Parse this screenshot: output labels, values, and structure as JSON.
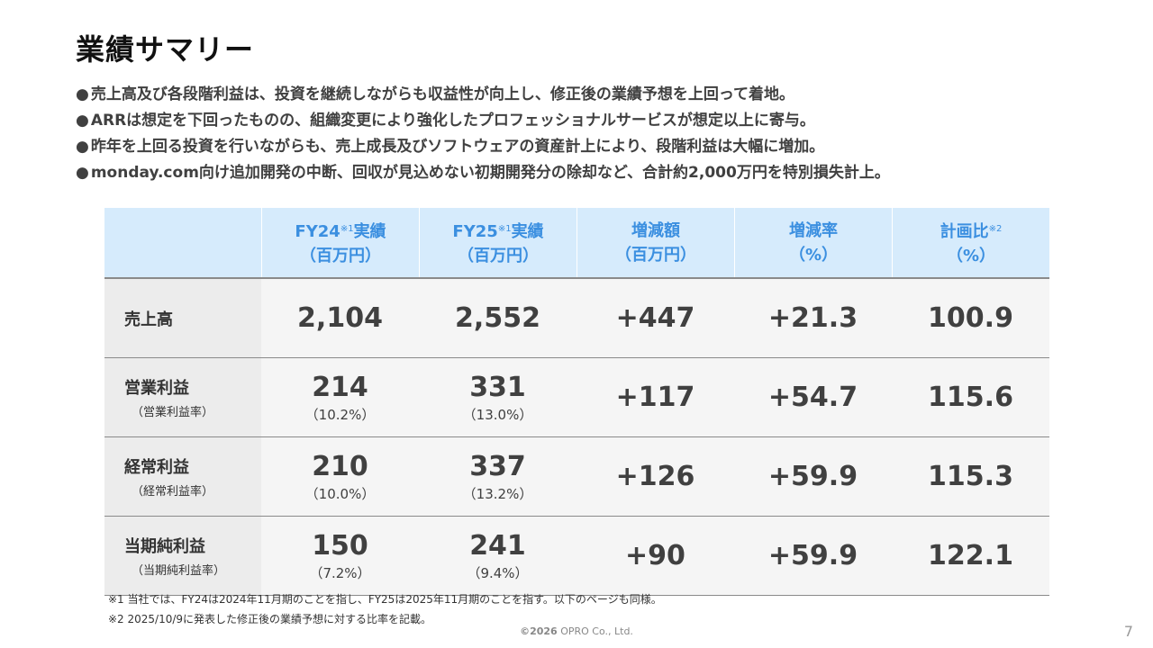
{
  "title": "業績サマリー",
  "bullets": [
    "売上高及び各段階利益は、投資を継続しながらも収益性が向上し、修正後の業績予想を上回って着地。",
    "ARRは想定を下回ったものの、組織変更により強化したプロフェッショナルサービスが想定以上に寄与。",
    "昨年を上回る投資を行いながらも、売上成長及びソフトウェアの資産計上により、段階利益は大幅に増加。",
    "monday.com向け追加開発の中断、回収が見込めない初期開発分の除却など、合計約2,000万円を特別損失計上。"
  ],
  "bullet_marker": "●",
  "table": {
    "headers": [
      {
        "line1": "FY24",
        "sup": "※1",
        "line1b": "実績",
        "line2": "（百万円）"
      },
      {
        "line1": "FY25",
        "sup": "※1",
        "line1b": "実績",
        "line2": "（百万円）"
      },
      {
        "line1": "増減額",
        "sup": "",
        "line1b": "",
        "line2": "（百万円）"
      },
      {
        "line1": "増減率",
        "sup": "",
        "line1b": "",
        "line2": "（%）"
      },
      {
        "line1": "計画比",
        "sup": "※2",
        "line1b": "",
        "line2": "（%）"
      }
    ],
    "rows": [
      {
        "label": "売上高",
        "sublabel": "",
        "fy24": "2,104",
        "fy24_pct": "",
        "fy25": "2,552",
        "fy25_pct": "",
        "diff": "+447",
        "rate": "+21.3",
        "plan": "100.9"
      },
      {
        "label": "営業利益",
        "sublabel": "（営業利益率）",
        "fy24": "214",
        "fy24_pct": "（10.2%）",
        "fy25": "331",
        "fy25_pct": "（13.0%）",
        "diff": "+117",
        "rate": "+54.7",
        "plan": "115.6"
      },
      {
        "label": "経常利益",
        "sublabel": "（経常利益率）",
        "fy24": "210",
        "fy24_pct": "（10.0%）",
        "fy25": "337",
        "fy25_pct": "（13.2%）",
        "diff": "+126",
        "rate": "+59.9",
        "plan": "115.3"
      },
      {
        "label": "当期純利益",
        "sublabel": "（当期純利益率）",
        "fy24": "150",
        "fy24_pct": "（7.2%）",
        "fy25": "241",
        "fy25_pct": "（9.4%）",
        "diff": "+90",
        "rate": "+59.9",
        "plan": "122.1"
      }
    ]
  },
  "notes": [
    "※1 当社では、FY24は2024年11月期のことを指し、FY25は2025年11月期のことを指す。以下のページも同様。",
    "※2 2025/10/9に発表した修正後の業績予想に対する比率を記載。"
  ],
  "copyright_year": "©2026",
  "copyright_name": " OPRO Co., Ltd.",
  "page_number": "7",
  "colors": {
    "header_bg": "#d6ebfc",
    "header_text": "#3b8fe0"
  }
}
